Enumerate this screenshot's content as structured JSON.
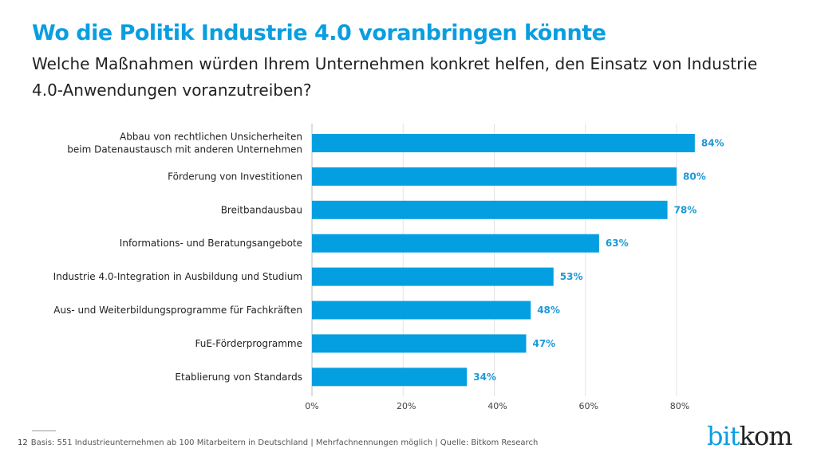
{
  "header": {
    "title": "Wo die Politik Industrie 4.0 voranbringen könnte",
    "subtitle": "Welche Maßnahmen würden Ihrem Unternehmen konkret helfen, den Einsatz von Industrie 4.0-Anwendungen voranzutreiben?"
  },
  "footer": {
    "page": "12",
    "note": "Basis: 551 Industrieunternehmen ab 100 Mitarbeitern in Deutschland | Mehrfachnennungen möglich | Quelle: Bitkom Research"
  },
  "logo": {
    "part1": "bit",
    "part2": "kom"
  },
  "colors": {
    "bar": "#049fe0",
    "label": "#1a9ad6",
    "accent": "#0a9ee0"
  },
  "chart_data": {
    "type": "bar",
    "orientation": "horizontal",
    "categories": [
      [
        "Abbau von rechtlichen Unsicherheiten",
        "beim Datenaustausch mit anderen Unternehmen"
      ],
      [
        "Förderung von Investitionen"
      ],
      [
        "Breitbandausbau"
      ],
      [
        "Informations- und Beratungsangebote"
      ],
      [
        "Industrie 4.0-Integration in Ausbildung und Studium"
      ],
      [
        "Aus- und Weiterbildungsprogramme für Fachkräften"
      ],
      [
        "FuE-Förderprogramme"
      ],
      [
        "Etablierung von Standards"
      ]
    ],
    "values": [
      84,
      80,
      78,
      63,
      53,
      48,
      47,
      34
    ],
    "data_labels": [
      "84%",
      "80%",
      "78%",
      "63%",
      "53%",
      "48%",
      "47%",
      "34%"
    ],
    "xticks": [
      0,
      20,
      40,
      60,
      80
    ],
    "xtick_labels": [
      "0%",
      "20%",
      "40%",
      "60%",
      "80%"
    ],
    "xlim": [
      0,
      90
    ],
    "grid": true
  }
}
